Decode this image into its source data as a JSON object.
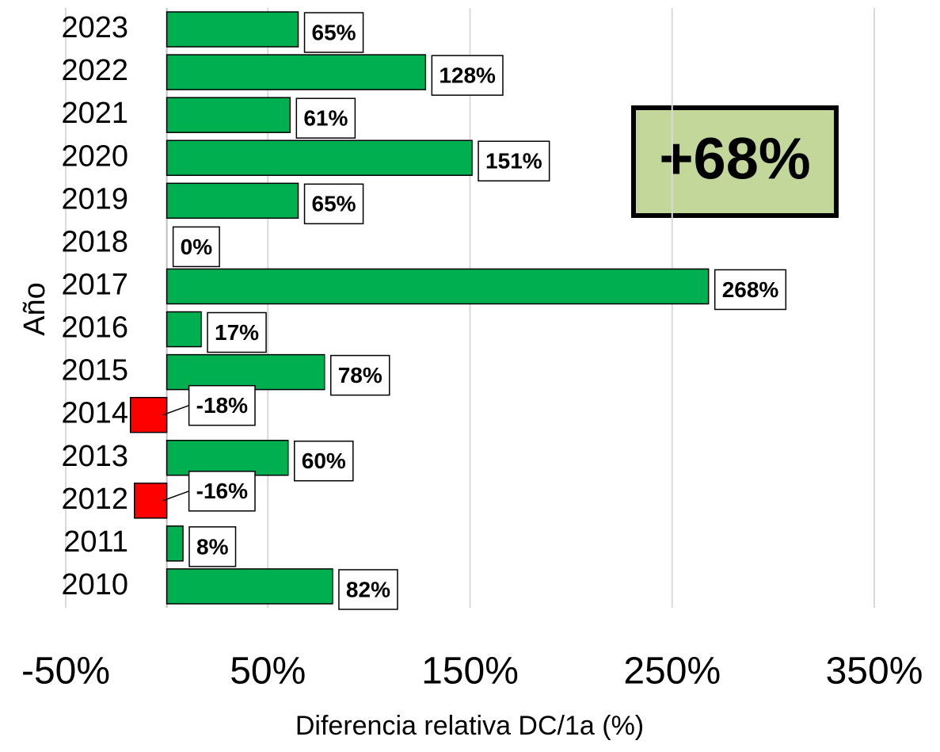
{
  "chart_data": {
    "type": "bar",
    "orientation": "horizontal",
    "categories": [
      "2023",
      "2022",
      "2021",
      "2020",
      "2019",
      "2018",
      "2017",
      "2016",
      "2015",
      "2014",
      "2013",
      "2012",
      "2011",
      "2010"
    ],
    "values": [
      65,
      128,
      61,
      151,
      65,
      0,
      268,
      17,
      78,
      -18,
      60,
      -16,
      8,
      82
    ],
    "value_labels": [
      "65%",
      "128%",
      "61%",
      "151%",
      "65%",
      "0%",
      "268%",
      "17%",
      "78%",
      "-18%",
      "60%",
      "-16%",
      "8%",
      "82%"
    ],
    "color": "#00b050",
    "negative_color": "#ff0000",
    "xlim": [
      -50,
      350
    ],
    "xticks": [
      {
        "value": -50,
        "label": "-50%"
      },
      {
        "value": 50,
        "label": "50%"
      },
      {
        "value": 150,
        "label": "150%"
      },
      {
        "value": 250,
        "label": "250%"
      },
      {
        "value": 350,
        "label": "350%"
      }
    ],
    "grid": true,
    "x_label": "Diferencia relativa DC/1a (%)",
    "y_label": "Año",
    "annotation": "+68%"
  }
}
